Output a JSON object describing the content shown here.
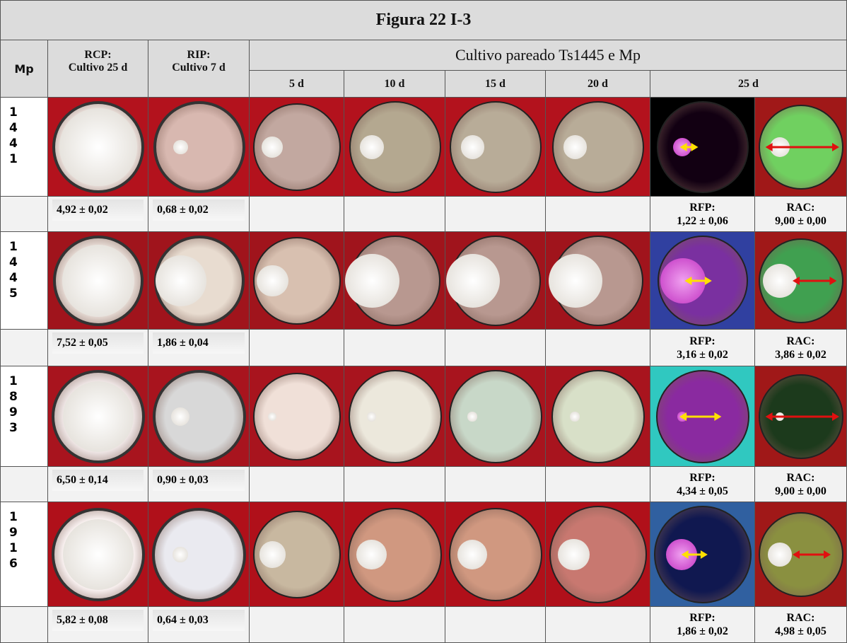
{
  "title": "Figura 22 I-3",
  "header": {
    "mp": "Mp",
    "rcp": [
      "RCP:",
      "Cultivo 25 d"
    ],
    "rip": [
      "RIP:",
      "Cultivo 7 d"
    ],
    "paired": "Cultivo pareado Ts1445 e Mp",
    "days": [
      "5 d",
      "10 d",
      "15 d",
      "20 d",
      "25 d"
    ]
  },
  "rows": [
    {
      "mp": [
        "1",
        "4",
        "4",
        "1"
      ],
      "rcp": "4,92 ± 0,02",
      "rip": "0,68 ± 0,02",
      "rfp": [
        "RFP:",
        "1,22 ± 0,06"
      ],
      "rac": [
        "RAC:",
        "9,00 ± 0,00"
      ]
    },
    {
      "mp": [
        "1",
        "4",
        "4",
        "5"
      ],
      "rcp": "7,52 ± 0,05",
      "rip": "1,86 ± 0,04",
      "rfp": [
        "RFP:",
        "3,16 ± 0,02"
      ],
      "rac": [
        "RAC:",
        "3,86 ± 0,02"
      ]
    },
    {
      "mp": [
        "1",
        "8",
        "9",
        "3"
      ],
      "rcp": "6,50 ± 0,14",
      "rip": "0,90 ± 0,03",
      "rfp": [
        "RFP:",
        "4,34 ± 0,05"
      ],
      "rac": [
        "RAC:",
        "9,00 ± 0,00"
      ]
    },
    {
      "mp": [
        "1",
        "9",
        "1",
        "6"
      ],
      "rcp": "5,82 ± 0,08",
      "rip": "0,64 ± 0,03",
      "rfp": [
        "RFP:",
        "1,86 ± 0,02"
      ],
      "rac": [
        "RAC:",
        "4,98 ± 0,05"
      ]
    }
  ]
}
